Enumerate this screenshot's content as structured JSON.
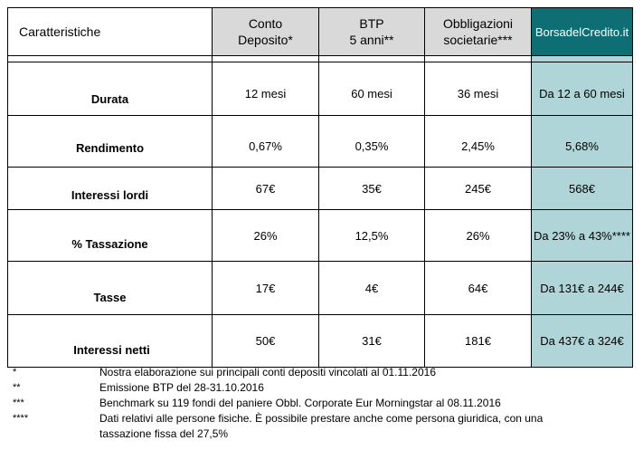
{
  "header": {
    "characteristics": "Caratteristiche",
    "col1_line1": "Conto",
    "col1_line2": "Deposito*",
    "col2_line1": "BTP",
    "col2_line2": "5 anni**",
    "col3_line1": "Obbligazioni",
    "col3_line2": "societarie***",
    "col4": "BorsadelCredito.it"
  },
  "rows": [
    {
      "label": "Durata",
      "c1": "12 mesi",
      "c2": "60 mesi",
      "c3": "36 mesi",
      "c4": "Da 12 a 60 mesi"
    },
    {
      "label": "Rendimento",
      "c1": "0,67%",
      "c2": "0,35%",
      "c3": "2,45%",
      "c4": "5,68%"
    },
    {
      "label": "Interessi lordi",
      "c1": "67€",
      "c2": "35€",
      "c3": "245€",
      "c4": "568€"
    },
    {
      "label": "% Tassazione",
      "c1": "26%",
      "c2": "12,5%",
      "c3": "26%",
      "c4": "Da 23% a 43%****"
    },
    {
      "label": "Tasse",
      "c1": "17€",
      "c2": "4€",
      "c3": "64€",
      "c4": "Da 131€ a 244€"
    },
    {
      "label": "Interessi netti",
      "c1": "50€",
      "c2": "31€",
      "c3": "181€",
      "c4": "Da 437€ a 324€"
    }
  ],
  "notes": [
    {
      "mark": "*",
      "text": "Nostra elaborazione sui principali conti depositi vincolati al 01.11.2016"
    },
    {
      "mark": "**",
      "text": "Emissione BTP del 28-31.10.2016"
    },
    {
      "mark": "***",
      "text": "Benchmark su 119 fondi del paniere Obbl. Corporate Eur Morningstar al 08.11.2016"
    },
    {
      "mark": "****",
      "text": "Dati relativi alle persone fisiche. È possibile prestare anche come persona giuridica, con una tassazione fissa del 27,5%"
    }
  ],
  "colors": {
    "brand": "#0e6e74",
    "brand_light": "#b0d5d8",
    "header_grey": "#d9d9d9"
  }
}
